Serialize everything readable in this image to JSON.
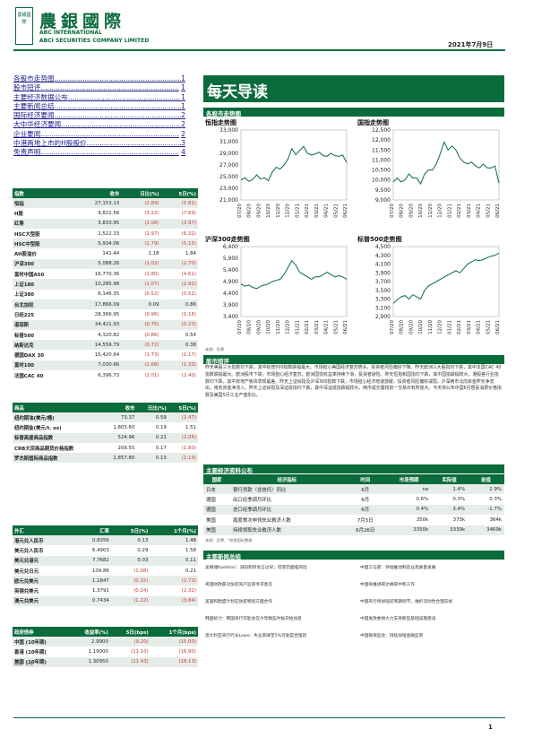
{
  "header": {
    "logo_text": "農銀國際",
    "brand_cn": "農銀國際",
    "brand_en1": "ABC INTERNATIONAL",
    "brand_en2": "ABCI SECURITIES COMPANY LIMITED",
    "date": "2021年7月9日"
  },
  "toc": [
    {
      "label": "各股市走势图",
      "page": "1"
    },
    {
      "label": "股市短评",
      "page": "1"
    },
    {
      "label": "主要经济数据公布",
      "page": "1"
    },
    {
      "label": "主要新闻总结",
      "page": "1"
    },
    {
      "label": "国际经济要闻",
      "page": "2"
    },
    {
      "label": "大中华经济要闻",
      "page": "2"
    },
    {
      "label": "企业要闻",
      "page": "2"
    },
    {
      "label": "中港两地上市的H股股价",
      "page": "3"
    },
    {
      "label": "免责声明",
      "page": "4"
    }
  ],
  "title": "每天导读",
  "section_charts": "各股市走势图",
  "section_comment": "股市短评",
  "section_eco": "主要经济资料公布",
  "section_news": "主要新闻总结",
  "charts": [
    {
      "name": "恒指走势图",
      "yticks": [
        "33,000",
        "31,000",
        "29,000",
        "27,000",
        "25,000",
        "23,000",
        "21,000"
      ],
      "ymin": 21000,
      "ymax": 33000,
      "values": [
        24400,
        24800,
        24200,
        24500,
        25300,
        24600,
        24800,
        24300,
        25800,
        26600,
        26300,
        27000,
        28000,
        29800,
        28800,
        29500,
        30200,
        29000,
        28700,
        28900,
        29200,
        28600,
        28500,
        29000,
        28600,
        28500,
        28700,
        27400
      ],
      "xticks": [
        "07/20",
        "08/20",
        "09/20",
        "10/20",
        "11/20",
        "12/20",
        "01/21",
        "02/21",
        "03/21",
        "04/21",
        "05/21",
        "06/21"
      ]
    },
    {
      "name": "国指走势图",
      "yticks": [
        "12,500",
        "12,000",
        "11,500",
        "11,000",
        "10,500",
        "10,000",
        "9,500",
        "9,000"
      ],
      "ymin": 9000,
      "ymax": 12500,
      "values": [
        9900,
        10100,
        9900,
        10000,
        10300,
        10100,
        10100,
        9800,
        10300,
        10500,
        10500,
        10800,
        11300,
        11900,
        11500,
        11700,
        11500,
        11100,
        10900,
        10800,
        10900,
        10700,
        10600,
        10800,
        10600,
        10600,
        10700,
        9850
      ],
      "xticks": [
        "07/20",
        "08/20",
        "09/20",
        "10/20",
        "11/20",
        "12/20",
        "01/21",
        "02/21",
        "03/21",
        "04/21",
        "05/21",
        "06/21"
      ]
    },
    {
      "name": "沪深300走势图",
      "yticks": [
        "6,400",
        "5,900",
        "5,400",
        "4,900",
        "4,400",
        "3,900",
        "3,400"
      ],
      "ymin": 3400,
      "ymax": 6400,
      "values": [
        4800,
        4700,
        4750,
        4650,
        4600,
        4700,
        4750,
        4800,
        4900,
        4950,
        5000,
        5200,
        5500,
        5800,
        5600,
        5300,
        5200,
        5100,
        5000,
        5100,
        5100,
        5200,
        5300,
        5200,
        5100,
        5150,
        5100,
        5000
      ],
      "xticks": [
        "07/20",
        "08/20",
        "09/20",
        "10/20",
        "11/20",
        "12/20",
        "01/21",
        "02/21",
        "03/21",
        "04/21",
        "05/21",
        "06/21"
      ]
    },
    {
      "name": "标普500走势图",
      "yticks": [
        "4,500",
        "4,300",
        "4,100",
        "3,900",
        "3,700",
        "3,500",
        "3,300",
        "3,100",
        "2,900"
      ],
      "ymin": 2900,
      "ymax": 4500,
      "values": [
        3200,
        3280,
        3350,
        3380,
        3300,
        3400,
        3350,
        3300,
        3500,
        3600,
        3650,
        3700,
        3750,
        3800,
        3850,
        3900,
        3950,
        3900,
        4000,
        4100,
        4150,
        4200,
        4180,
        4200,
        4250,
        4280,
        4300,
        4350
      ],
      "xticks": [
        "07/20",
        "08/20",
        "09/20",
        "10/20",
        "11/20",
        "12/20",
        "01/21",
        "02/21",
        "03/21",
        "04/21",
        "05/21",
        "06/21"
      ]
    }
  ],
  "chart_source": "来源：彭博",
  "comment": "昨天美股三大指数均下跌，其中标普500指数跌幅最大。市场担心美国经济复苏势头，投资者风险偏好下降。昨天欧洲三大股指均下跌，其中法国CAC 40指数跌幅最大。欧洲股市下跌，市场担心经济复苏。欧洲国债收益率持续下滑，投资者避险。昨天恒指和国指均下跌，其中国指跌幅较大。港股各行业指数均下跌，其中房地产板块表现最差。昨天上证综指及沪深300指数下跌，市场担心经济增速放缓，投资者风险偏好减弱。沪深两市北向资金昨天净流出，南向资金净流入。昨天上证综指及深证成指均下跌，其中深证成指跌幅较大。两市成交量较前一交易日有所放大。今天将公布中国6月居民消费价格指数及美国5月工业产值年比。",
  "market": {
    "headers": [
      "指数",
      "收市",
      "日比(%)",
      "5日(%)"
    ],
    "rows": [
      [
        "恒指",
        "27,153.13",
        "(2.89)",
        "(5.81)"
      ],
      [
        "H股",
        "9,822.56",
        "(3.22)",
        "(7.69)"
      ],
      [
        "红筹",
        "3,833.95",
        "(2.08)",
        "(3.97)"
      ],
      [
        "HSC大型股",
        "2,522.33",
        "(2.97)",
        "(6.32)"
      ],
      [
        "HSC中型股",
        "5,934.06",
        "(2.79)",
        "(5.15)"
      ],
      [
        "AH股溢价",
        "141.44",
        "1.18",
        "1.84"
      ],
      [
        "沪深300",
        "5,088.26",
        "(1.02)",
        "(2.70)"
      ],
      [
        "富时中国A50",
        "16,770.36",
        "(1.80)",
        "(4.61)"
      ],
      [
        "上证180",
        "10,285.98",
        "(1.07)",
        "(2.92)"
      ],
      [
        "上证380",
        "6,146.35",
        "(0.52)",
        "(0.52)"
      ],
      [
        "台北加权",
        "17,866.09",
        "0.09",
        "0.86"
      ],
      [
        "日经225",
        "28,366.95",
        "(0.96)",
        "(1.18)"
      ],
      [
        "道琼斯",
        "34,421.93",
        "(0.75)",
        "(0.23)"
      ],
      [
        "标普500",
        "4,320.82",
        "(0.86)",
        "0.54"
      ],
      [
        "纳斯达克",
        "14,559.79",
        "(0.72)",
        "0.38"
      ],
      [
        "德国DAX 30",
        "15,420.64",
        "(1.73)",
        "(1.17)"
      ],
      [
        "富时100",
        "7,030.66",
        "(1.68)",
        "(1.33)"
      ],
      [
        "法国CAC 40",
        "6,396.73",
        "(2.01)",
        "(2.40)"
      ]
    ]
  },
  "commodity": {
    "headers": [
      "商品",
      "收市",
      "日比(%)",
      "5日(%)"
    ],
    "rows": [
      [
        "纽约期油(美元/桶)",
        "73.37",
        "0.59",
        "(2.47)"
      ],
      [
        "纽约期金(美元/t. oz)",
        "1,803.60",
        "0.19",
        "1.51"
      ],
      [
        "标普高盛商品指数",
        "524.96",
        "0.21",
        "(2.05)"
      ],
      [
        "CRB大宗商品期货价格指数",
        "209.55",
        "0.17",
        "(1.80)"
      ],
      [
        "罗杰斯国际商品指数",
        "2,857.80",
        "0.13",
        "(2.19)"
      ]
    ]
  },
  "fx": {
    "headers": [
      "外汇",
      "汇率",
      "5日(%)",
      "1个月(%)"
    ],
    "rows": [
      [
        "港元兑人民币",
        "0.8356",
        "0.13",
        "1.48"
      ],
      [
        "美元兑人民币",
        "6.4903",
        "0.29",
        "1.58"
      ],
      [
        "美元兑港元",
        "7.7682",
        "0.03",
        "0.11"
      ],
      [
        "美元兑日元",
        "109.86",
        "(1.08)",
        "0.21"
      ],
      [
        "欧元兑美元",
        "1.1847",
        "(0.15)",
        "(2.73)"
      ],
      [
        "英镑兑美元",
        "1.3791",
        "(0.24)",
        "(2.32)"
      ],
      [
        "澳元兑美元",
        "0.7434",
        "(1.22)",
        "(3.84)"
      ]
    ]
  },
  "bond": {
    "headers": [
      "政府债券",
      "收益率(%)",
      "5日(bps)",
      "1个月(bps)"
    ],
    "rows": [
      [
        "中国 (10年期)",
        "2.9900",
        "(9.20)",
        "(15.00)"
      ],
      [
        "香港 (10年期)",
        "1.19000",
        "(11.10)",
        "(16.90)"
      ],
      [
        "美国 (10年期)",
        "1.30950",
        "(11.43)",
        "(18.13)"
      ]
    ]
  },
  "table_source": "来源：彭博",
  "eco": {
    "headers": [
      "国家",
      "经济指标",
      "时间",
      "市场预期",
      "实际值",
      "前值"
    ],
    "rows": [
      [
        "日本",
        "银行贷款（含信托）同比",
        "6月",
        "na",
        "1.4%",
        "2.9%"
      ],
      [
        "德国",
        "出口经季调月环比",
        "6月",
        "0.6%",
        "0.3%",
        "0.3%"
      ],
      [
        "德国",
        "进口经季调月环比",
        "6月",
        "0.4%",
        "3.4%",
        "-1.7%"
      ],
      [
        "美国",
        "周度首次申领失业救济人数",
        "7月3日",
        "350k",
        "373k",
        "364k"
      ],
      [
        "美国",
        "持续领取失业救济人数",
        "6月26日",
        "3350k",
        "3339k",
        "3469k"
      ]
    ]
  },
  "eco_source": "来源：彭博、*农银国际整理",
  "news_left": [
    "美联储Kashkari：减码购债尚言过早；前景仍面临风险",
    "英国财政部对加密资产监管寻求意见",
    "美国和欧盟计划在防疫物资方面合作",
    "韩国统计：韩国央行可能会在今年晚些时候开始加息",
    "澳大利亚央行行长Lowe：失业率降至5%可能是合理的"
  ],
  "news_right": [
    "中国工信部：持续推动制造业高质量发展",
    "中国将推进碳达峰碳中和工作",
    "中国央行将加强逆周期调节，维护流动性合理充裕",
    "中国发改委将大力支持新型基础设施建设",
    "中国银保监会：持续加强金融监管"
  ],
  "page_number": "1"
}
